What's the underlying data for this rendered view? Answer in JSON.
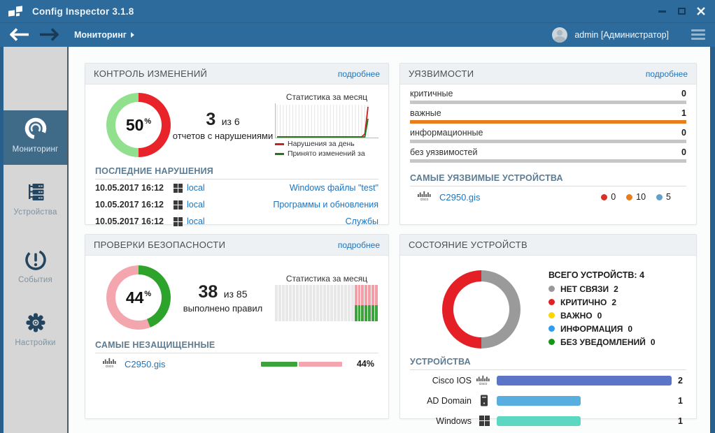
{
  "titlebar": {
    "app_title": "Config Inspector 3.1.8"
  },
  "navbar": {
    "breadcrumb": "Мониторинг",
    "user": "admin [Администратор]"
  },
  "sidebar": {
    "items": [
      {
        "label": "Мониторинг"
      },
      {
        "label": "Устройства"
      },
      {
        "label": "События"
      },
      {
        "label": "Настройки"
      }
    ]
  },
  "icons": {
    "cisco_label": "cisco"
  },
  "panels": {
    "changes": {
      "title": "КОНТРОЛЬ ИЗМЕНЕНИЙ",
      "more": "подробнее",
      "donut": {
        "percent": 50,
        "display": "50",
        "unit": "%",
        "color_a": "#e8232a",
        "color_b": "#90e08e"
      },
      "summary": {
        "big": "3",
        "rest": "из 6",
        "caption": "отчетов с нарушениями"
      },
      "chart": {
        "type": "line",
        "title": "Статистика за месяц",
        "days": 30,
        "ymax": 10,
        "series": [
          {
            "name": "Нарушения за день",
            "color": "#cc2027",
            "data": [
              0,
              0,
              0,
              0,
              0,
              0,
              0,
              0,
              0,
              0,
              0,
              0,
              0,
              0,
              0,
              0,
              0,
              0,
              0,
              0,
              0,
              0,
              0,
              0,
              0,
              0,
              0,
              0,
              1,
              10
            ]
          },
          {
            "name": "Принято изменений за",
            "color": "#1d7a1d",
            "data": [
              0,
              0,
              0,
              0,
              0,
              0,
              0,
              0,
              0,
              0,
              0,
              0,
              0,
              0,
              0,
              0,
              0,
              0,
              0,
              0,
              0,
              0,
              0,
              0,
              0,
              0,
              0,
              0,
              0,
              6
            ]
          }
        ]
      },
      "section": "ПОСЛЕДНИЕ НАРУШЕНИЯ",
      "rows": [
        {
          "date": "10.05.2017 16:12",
          "host": "local",
          "report": "Windows файлы \"test\""
        },
        {
          "date": "10.05.2017 16:12",
          "host": "local",
          "report": "Программы и обновления"
        },
        {
          "date": "10.05.2017 16:12",
          "host": "local",
          "report": "Службы"
        }
      ]
    },
    "vulns": {
      "title": "УЯЗВИМОСТИ",
      "more": "подробнее",
      "bars": [
        {
          "label": "критичные",
          "value": "0",
          "color": "#c6c6c6",
          "fill_pct": 100
        },
        {
          "label": "важные",
          "value": "1",
          "color": "#e87d1e",
          "fill_pct": 100
        },
        {
          "label": "информационные",
          "value": "0",
          "color": "#c6c6c6",
          "fill_pct": 100
        },
        {
          "label": "без уязвимостей",
          "value": "0",
          "color": "#c6c6c6",
          "fill_pct": 100
        }
      ],
      "section": "САМЫЕ УЯЗВИМЫЕ УСТРОЙСТВА",
      "device": {
        "name": "C2950.gis",
        "counts": [
          {
            "color": "#d93025",
            "value": "0"
          },
          {
            "color": "#e87d1e",
            "value": "10"
          },
          {
            "color": "#649fc8",
            "value": "5"
          }
        ]
      }
    },
    "security": {
      "title": "ПРОВЕРКИ БЕЗОПАСНОСТИ",
      "more": "подробнее",
      "donut": {
        "percent": 44,
        "display": "44",
        "unit": "%",
        "color_a": "#2ea32b",
        "color_b": "#f4a6ae"
      },
      "summary": {
        "big": "38",
        "rest": "из 85",
        "caption": "выполнено правил"
      },
      "chart": {
        "type": "bar",
        "title": "Статистика за месяц",
        "count": 30,
        "highlight_count": 7,
        "bottom_pct": 45,
        "base_color": "#e8e8e8",
        "top_color": "#f2a0a8",
        "bottom_color": "#3da33d"
      },
      "section": "САМЫЕ НЕЗАЩИЩЕННЫЕ",
      "device": {
        "name": "C2950.gis",
        "percent_label": "44%",
        "segments": [
          {
            "color": "#3da33d",
            "pct": 44
          },
          {
            "color": "#f4a6ae",
            "pct": 53
          }
        ]
      }
    },
    "status": {
      "title": "СОСТОЯНИЕ УСТРОЙСТВ",
      "donut": {
        "percent": 50,
        "color_a": "#9a9a9a",
        "color_b": "#e42026"
      },
      "total_label": "ВСЕГО УСТРОЙСТВ:",
      "total_value": "4",
      "legend": [
        {
          "color": "#999999",
          "label": "НЕТ СВЯЗИ",
          "value": "2"
        },
        {
          "color": "#e42026",
          "label": "КРИТИЧНО",
          "value": "2"
        },
        {
          "color": "#ffd500",
          "label": "ВАЖНО",
          "value": "0"
        },
        {
          "color": "#2e9df0",
          "label": "ИНФОРМАЦИЯ",
          "value": "0"
        },
        {
          "color": "#169616",
          "label": "БЕЗ УВЕДОМЛЕНИЙ",
          "value": "0"
        }
      ],
      "section": "УСТРОЙСТВА",
      "bars": [
        {
          "label": "Cisco IOS",
          "icon": "cisco",
          "color": "#5b74c8",
          "width_pct": 100,
          "value": "2"
        },
        {
          "label": "AD Domain",
          "icon": "server",
          "color": "#58aede",
          "width_pct": 48,
          "value": "1"
        },
        {
          "label": "Windows",
          "icon": "windows",
          "color": "#5cd8c2",
          "width_pct": 48,
          "value": "1"
        }
      ]
    }
  }
}
